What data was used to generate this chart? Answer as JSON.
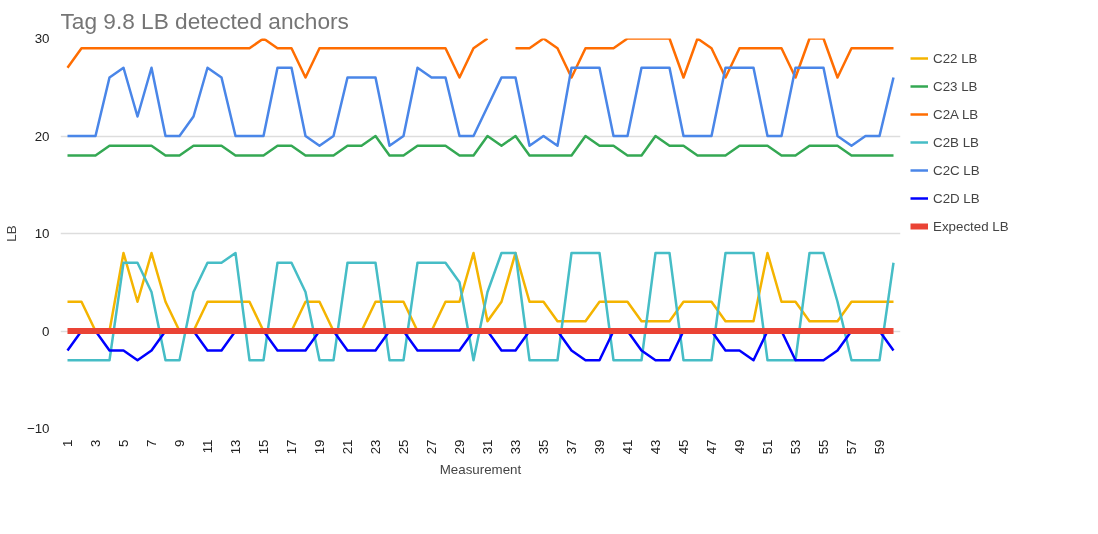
{
  "chart_data": {
    "type": "line",
    "title": "Tag 9.8 LB detected anchors",
    "xlabel": "Measurement",
    "ylabel": "LB",
    "x": [
      1,
      2,
      3,
      4,
      5,
      6,
      7,
      8,
      9,
      10,
      11,
      12,
      13,
      14,
      15,
      16,
      17,
      18,
      19,
      20,
      21,
      22,
      23,
      24,
      25,
      26,
      27,
      28,
      29,
      30,
      31,
      32,
      33,
      34,
      35,
      36,
      37,
      38,
      39,
      40,
      41,
      42,
      43,
      44,
      45,
      46,
      47,
      48,
      49,
      50,
      51,
      52,
      53,
      54,
      55,
      56,
      57,
      58,
      59,
      60
    ],
    "xlim": [
      0.5,
      60.5
    ],
    "xticks": [
      1,
      3,
      5,
      7,
      9,
      11,
      13,
      15,
      17,
      19,
      21,
      23,
      25,
      27,
      29,
      31,
      33,
      35,
      37,
      39,
      41,
      43,
      45,
      47,
      49,
      51,
      53,
      55,
      57,
      59
    ],
    "ylim": [
      -10,
      30
    ],
    "yticks": [
      -10,
      0,
      10,
      20,
      30
    ],
    "grid": "y",
    "legend": "right",
    "marker": "none",
    "line_style": "solid",
    "series": [
      {
        "name": "C22 LB",
        "color": "#f4b400",
        "values": [
          3,
          3,
          0,
          0,
          8,
          3,
          8,
          3,
          0,
          0,
          3,
          3,
          3,
          3,
          0,
          0,
          0,
          3,
          3,
          0,
          0,
          0,
          3,
          3,
          3,
          0,
          0,
          3,
          3,
          8,
          1,
          3,
          8,
          3,
          3,
          1,
          1,
          1,
          3,
          3,
          3,
          1,
          1,
          1,
          3,
          3,
          3,
          1,
          1,
          1,
          8,
          3,
          3,
          1,
          1,
          1,
          3,
          3,
          3,
          3
        ]
      },
      {
        "name": "C23 LB",
        "color": "#34a853",
        "values": [
          18,
          18,
          18,
          19,
          19,
          19,
          19,
          18,
          18,
          19,
          19,
          19,
          18,
          18,
          18,
          19,
          19,
          18,
          18,
          18,
          19,
          19,
          20,
          18,
          18,
          19,
          19,
          19,
          18,
          18,
          20,
          19,
          20,
          18,
          18,
          18,
          18,
          20,
          19,
          19,
          18,
          18,
          20,
          19,
          19,
          18,
          18,
          18,
          19,
          19,
          19,
          18,
          18,
          19,
          19,
          19,
          18,
          18,
          18,
          18
        ]
      },
      {
        "name": "C2A LB",
        "color": "#ff6d01",
        "values": [
          27,
          29,
          29,
          29,
          29,
          29,
          29,
          29,
          29,
          29,
          29,
          29,
          29,
          29,
          30,
          29,
          29,
          26,
          29,
          29,
          29,
          29,
          29,
          29,
          29,
          29,
          29,
          29,
          26,
          29,
          30,
          null,
          29,
          29,
          30,
          29,
          26,
          29,
          29,
          29,
          30,
          30,
          30,
          30,
          26,
          30,
          29,
          26,
          29,
          29,
          29,
          29,
          26,
          30,
          30,
          26,
          29,
          29,
          29,
          29
        ]
      },
      {
        "name": "C2B LB",
        "color": "#46bdc6",
        "values": [
          -3,
          -3,
          -3,
          -3,
          7,
          7,
          4,
          -3,
          -3,
          4,
          7,
          7,
          8,
          -3,
          -3,
          7,
          7,
          4,
          -3,
          -3,
          7,
          7,
          7,
          -3,
          -3,
          7,
          7,
          7,
          5,
          -3,
          4,
          8,
          8,
          -3,
          -3,
          -3,
          8,
          8,
          8,
          -3,
          -3,
          -3,
          8,
          8,
          -3,
          -3,
          -3,
          8,
          8,
          8,
          -3,
          -3,
          -3,
          8,
          8,
          3,
          -3,
          -3,
          -3,
          7
        ]
      },
      {
        "name": "C2C LB",
        "color": "#4a86e8",
        "values": [
          20,
          20,
          20,
          26,
          27,
          22,
          27,
          20,
          20,
          22,
          27,
          26,
          20,
          20,
          20,
          27,
          27,
          20,
          19,
          20,
          26,
          26,
          26,
          19,
          20,
          27,
          26,
          26,
          20,
          20,
          23,
          26,
          26,
          19,
          20,
          19,
          27,
          27,
          27,
          20,
          20,
          27,
          27,
          27,
          20,
          20,
          20,
          27,
          27,
          27,
          20,
          20,
          27,
          27,
          27,
          20,
          19,
          20,
          20,
          26
        ]
      },
      {
        "name": "C2D LB",
        "color": "#0000ff",
        "values": [
          -2,
          0,
          0,
          -2,
          -2,
          -3,
          -2,
          0,
          0,
          0,
          -2,
          -2,
          0,
          0,
          0,
          -2,
          -2,
          -2,
          0,
          0,
          -2,
          -2,
          -2,
          0,
          0,
          -2,
          -2,
          -2,
          -2,
          0,
          0,
          -2,
          -2,
          0,
          0,
          0,
          -2,
          -3,
          -3,
          0,
          0,
          -2,
          -3,
          -3,
          0,
          0,
          0,
          -2,
          -2,
          -3,
          0,
          0,
          -3,
          -3,
          -3,
          -2,
          0,
          0,
          0,
          -2
        ]
      },
      {
        "name": "Expected LB",
        "color": "#ea4335",
        "values": [
          0,
          0,
          0,
          0,
          0,
          0,
          0,
          0,
          0,
          0,
          0,
          0,
          0,
          0,
          0,
          0,
          0,
          0,
          0,
          0,
          0,
          0,
          0,
          0,
          0,
          0,
          0,
          0,
          0,
          0,
          0,
          0,
          0,
          0,
          0,
          0,
          0,
          0,
          0,
          0,
          0,
          0,
          0,
          0,
          0,
          0,
          0,
          0,
          0,
          0,
          0,
          0,
          0,
          0,
          0,
          0,
          0,
          0,
          0,
          0
        ]
      }
    ]
  }
}
